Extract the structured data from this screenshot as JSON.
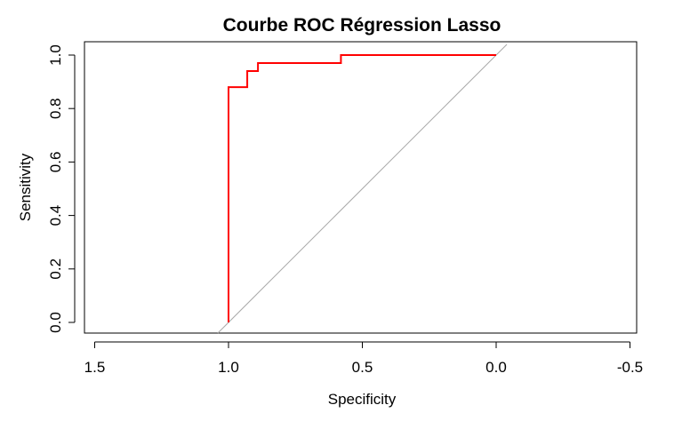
{
  "chart_data": {
    "type": "line",
    "title": "Courbe ROC Régression Lasso",
    "xlabel": "Specificity",
    "ylabel": "Sensitivity",
    "xlim": [
      1.5,
      -0.5
    ],
    "ylim": [
      0.0,
      1.0
    ],
    "x_reversed": true,
    "x_ticks": [
      1.5,
      1.0,
      0.5,
      0.0,
      -0.5
    ],
    "x_tick_labels": [
      "1.5",
      "1.0",
      "0.5",
      "0.0",
      "-0.5"
    ],
    "y_ticks": [
      0.0,
      0.2,
      0.4,
      0.6,
      0.8,
      1.0
    ],
    "y_tick_labels": [
      "0.0",
      "0.2",
      "0.4",
      "0.6",
      "0.8",
      "1.0"
    ],
    "grid": false,
    "series": [
      {
        "color": "#ff0000",
        "specificity": [
          1.0,
          1.0,
          0.93,
          0.93,
          0.89,
          0.89,
          0.58,
          0.58,
          0.0
        ],
        "sensitivity": [
          0.0,
          0.88,
          0.88,
          0.94,
          0.94,
          0.97,
          0.97,
          1.0,
          1.0
        ]
      }
    ],
    "reference_line": {
      "color": "#a9a9a9",
      "specificity": [
        1.0,
        0.0
      ],
      "sensitivity": [
        0.0,
        1.0
      ]
    }
  }
}
